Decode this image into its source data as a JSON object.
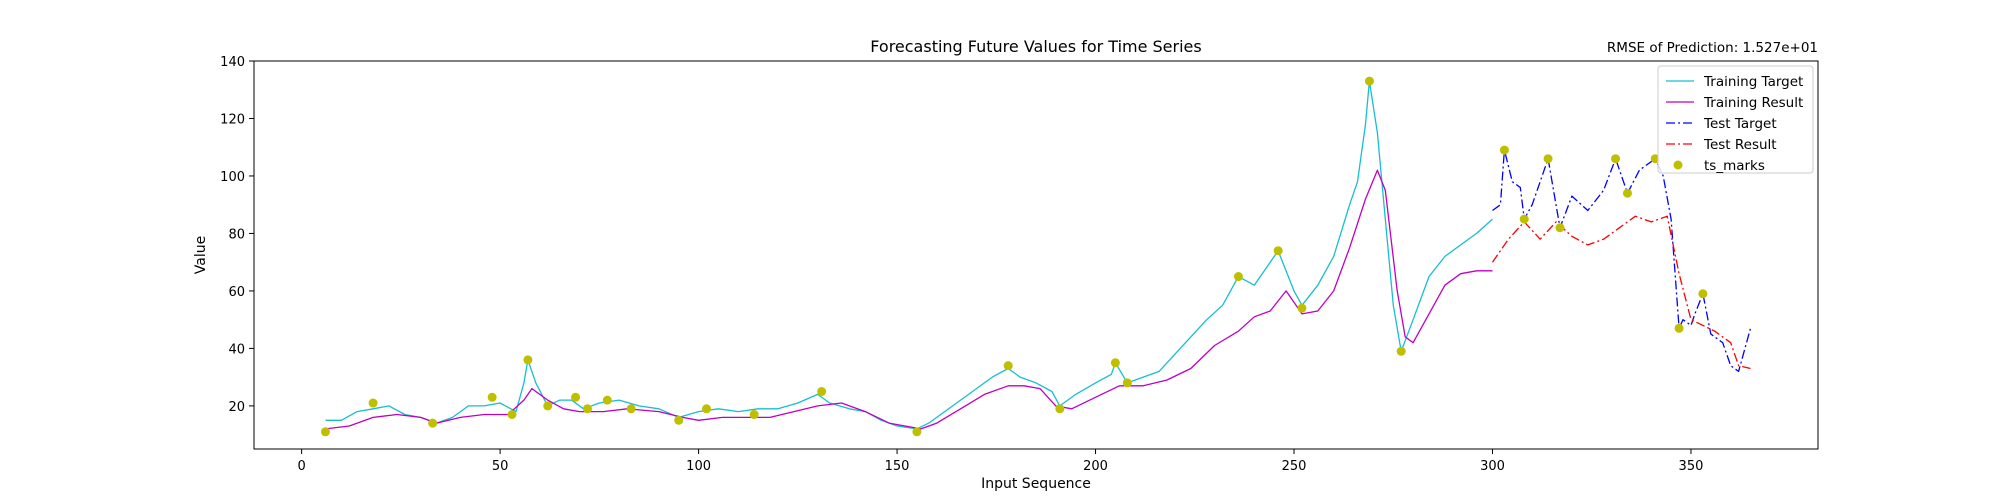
{
  "chart_data": {
    "type": "line",
    "title": "Forecasting Future Values for Time Series",
    "annotation": "RMSE of Prediction: 1.527e+01",
    "xlabel": "Input Sequence",
    "ylabel": "Value",
    "xlim": [
      -12,
      382
    ],
    "ylim": [
      5,
      140
    ],
    "xticks": [
      0,
      50,
      100,
      150,
      200,
      250,
      300,
      350
    ],
    "yticks": [
      20,
      40,
      60,
      80,
      100,
      120,
      140
    ],
    "grid": false,
    "legend_position": "top-right",
    "legend_labels": [
      "Training Target",
      "Training Result",
      "Test Target",
      "Test Result",
      "ts_marks"
    ],
    "colors": {
      "training_target": "#17becf",
      "training_result": "#bf00bf",
      "test_target": "#0000ff",
      "test_result": "#ff0000",
      "ts_marks": "#bfbf00"
    },
    "series": [
      {
        "name": "Training Target",
        "style": "solid",
        "points": [
          [
            6,
            15
          ],
          [
            10,
            15
          ],
          [
            14,
            18
          ],
          [
            18,
            19
          ],
          [
            22,
            20
          ],
          [
            26,
            17
          ],
          [
            30,
            16
          ],
          [
            34,
            14
          ],
          [
            38,
            16
          ],
          [
            42,
            20
          ],
          [
            46,
            20
          ],
          [
            50,
            21
          ],
          [
            54,
            18
          ],
          [
            56,
            28
          ],
          [
            57,
            36
          ],
          [
            59,
            28
          ],
          [
            62,
            20
          ],
          [
            65,
            22
          ],
          [
            68,
            22
          ],
          [
            71,
            19
          ],
          [
            75,
            21
          ],
          [
            80,
            22
          ],
          [
            85,
            20
          ],
          [
            90,
            19
          ],
          [
            95,
            16
          ],
          [
            100,
            18
          ],
          [
            105,
            19
          ],
          [
            110,
            18
          ],
          [
            115,
            19
          ],
          [
            120,
            19
          ],
          [
            125,
            21
          ],
          [
            130,
            24
          ],
          [
            133,
            21
          ],
          [
            138,
            19
          ],
          [
            142,
            18
          ],
          [
            146,
            15
          ],
          [
            150,
            13
          ],
          [
            155,
            12
          ],
          [
            158,
            14
          ],
          [
            162,
            18
          ],
          [
            166,
            22
          ],
          [
            170,
            26
          ],
          [
            174,
            30
          ],
          [
            178,
            33
          ],
          [
            181,
            30
          ],
          [
            185,
            28
          ],
          [
            189,
            25
          ],
          [
            191,
            20
          ],
          [
            195,
            24
          ],
          [
            200,
            28
          ],
          [
            204,
            31
          ],
          [
            205,
            35
          ],
          [
            208,
            28
          ],
          [
            212,
            30
          ],
          [
            216,
            32
          ],
          [
            220,
            38
          ],
          [
            224,
            44
          ],
          [
            228,
            50
          ],
          [
            232,
            55
          ],
          [
            236,
            65
          ],
          [
            240,
            62
          ],
          [
            244,
            70
          ],
          [
            246,
            74
          ],
          [
            250,
            60
          ],
          [
            252,
            55
          ],
          [
            256,
            62
          ],
          [
            260,
            72
          ],
          [
            264,
            90
          ],
          [
            266,
            98
          ],
          [
            268,
            118
          ],
          [
            269,
            133
          ],
          [
            271,
            115
          ],
          [
            273,
            85
          ],
          [
            275,
            55
          ],
          [
            277,
            39
          ],
          [
            280,
            50
          ],
          [
            284,
            65
          ],
          [
            288,
            72
          ],
          [
            292,
            76
          ],
          [
            296,
            80
          ],
          [
            300,
            85
          ]
        ]
      },
      {
        "name": "Training Result",
        "style": "solid",
        "points": [
          [
            6,
            12
          ],
          [
            12,
            13
          ],
          [
            18,
            16
          ],
          [
            24,
            17
          ],
          [
            30,
            16
          ],
          [
            34,
            14
          ],
          [
            40,
            16
          ],
          [
            46,
            17
          ],
          [
            52,
            17
          ],
          [
            56,
            22
          ],
          [
            58,
            26
          ],
          [
            62,
            22
          ],
          [
            66,
            19
          ],
          [
            70,
            18
          ],
          [
            76,
            18
          ],
          [
            82,
            19
          ],
          [
            90,
            18
          ],
          [
            96,
            16
          ],
          [
            100,
            15
          ],
          [
            106,
            16
          ],
          [
            112,
            16
          ],
          [
            118,
            16
          ],
          [
            124,
            18
          ],
          [
            130,
            20
          ],
          [
            136,
            21
          ],
          [
            142,
            18
          ],
          [
            148,
            14
          ],
          [
            152,
            13
          ],
          [
            156,
            12
          ],
          [
            160,
            14
          ],
          [
            166,
            19
          ],
          [
            172,
            24
          ],
          [
            178,
            27
          ],
          [
            182,
            27
          ],
          [
            186,
            26
          ],
          [
            190,
            20
          ],
          [
            194,
            19
          ],
          [
            200,
            23
          ],
          [
            206,
            27
          ],
          [
            212,
            27
          ],
          [
            218,
            29
          ],
          [
            224,
            33
          ],
          [
            230,
            41
          ],
          [
            236,
            46
          ],
          [
            240,
            51
          ],
          [
            244,
            53
          ],
          [
            248,
            60
          ],
          [
            252,
            52
          ],
          [
            256,
            53
          ],
          [
            260,
            60
          ],
          [
            264,
            75
          ],
          [
            268,
            92
          ],
          [
            271,
            102
          ],
          [
            273,
            95
          ],
          [
            276,
            60
          ],
          [
            278,
            44
          ],
          [
            280,
            42
          ],
          [
            284,
            52
          ],
          [
            288,
            62
          ],
          [
            292,
            66
          ],
          [
            296,
            67
          ],
          [
            300,
            67
          ]
        ]
      },
      {
        "name": "Test Target",
        "style": "dashdot",
        "points": [
          [
            300,
            88
          ],
          [
            302,
            90
          ],
          [
            303,
            109
          ],
          [
            305,
            98
          ],
          [
            307,
            96
          ],
          [
            308,
            85
          ],
          [
            310,
            90
          ],
          [
            314,
            106
          ],
          [
            316,
            90
          ],
          [
            317,
            82
          ],
          [
            320,
            93
          ],
          [
            324,
            88
          ],
          [
            328,
            95
          ],
          [
            331,
            106
          ],
          [
            333,
            98
          ],
          [
            334,
            94
          ],
          [
            337,
            102
          ],
          [
            341,
            106
          ],
          [
            343,
            100
          ],
          [
            345,
            85
          ],
          [
            347,
            47
          ],
          [
            348,
            50
          ],
          [
            350,
            48
          ],
          [
            351,
            52
          ],
          [
            353,
            59
          ],
          [
            355,
            45
          ],
          [
            358,
            42
          ],
          [
            360,
            34
          ],
          [
            362,
            32
          ],
          [
            365,
            47
          ]
        ]
      },
      {
        "name": "Test Result",
        "style": "dashdot",
        "points": [
          [
            300,
            70
          ],
          [
            304,
            78
          ],
          [
            308,
            84
          ],
          [
            312,
            78
          ],
          [
            316,
            84
          ],
          [
            320,
            79
          ],
          [
            324,
            76
          ],
          [
            328,
            78
          ],
          [
            332,
            82
          ],
          [
            336,
            86
          ],
          [
            340,
            84
          ],
          [
            344,
            86
          ],
          [
            347,
            66
          ],
          [
            350,
            50
          ],
          [
            353,
            48
          ],
          [
            356,
            46
          ],
          [
            360,
            42
          ],
          [
            362,
            34
          ],
          [
            365,
            33
          ]
        ]
      },
      {
        "name": "ts_marks",
        "style": "markers",
        "points": [
          [
            6,
            11
          ],
          [
            18,
            21
          ],
          [
            33,
            14
          ],
          [
            48,
            23
          ],
          [
            53,
            17
          ],
          [
            57,
            36
          ],
          [
            62,
            20
          ],
          [
            69,
            23
          ],
          [
            72,
            19
          ],
          [
            77,
            22
          ],
          [
            83,
            19
          ],
          [
            95,
            15
          ],
          [
            102,
            19
          ],
          [
            114,
            17
          ],
          [
            131,
            25
          ],
          [
            155,
            11
          ],
          [
            178,
            34
          ],
          [
            191,
            19
          ],
          [
            205,
            35
          ],
          [
            208,
            28
          ],
          [
            236,
            65
          ],
          [
            246,
            74
          ],
          [
            252,
            54
          ],
          [
            269,
            133
          ],
          [
            277,
            39
          ],
          [
            303,
            109
          ],
          [
            308,
            85
          ],
          [
            314,
            106
          ],
          [
            317,
            82
          ],
          [
            331,
            106
          ],
          [
            334,
            94
          ],
          [
            341,
            106
          ],
          [
            347,
            47
          ],
          [
            353,
            59
          ]
        ]
      }
    ]
  }
}
